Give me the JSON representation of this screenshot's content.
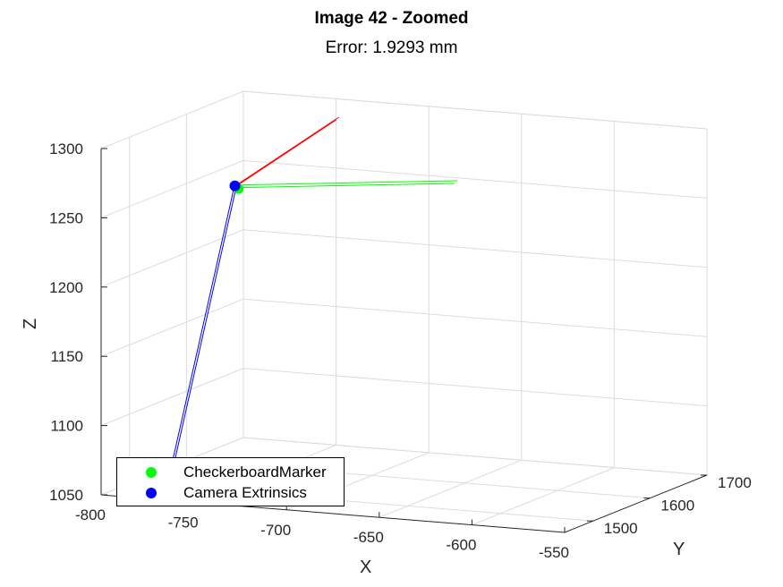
{
  "title": "Image 42 - Zoomed",
  "subtitle": "Error: 1.9293 mm",
  "chart_data": {
    "type": "scatter3d",
    "xlabel": "X",
    "ylabel": "Y",
    "zlabel": "Z",
    "xlim": [
      -800,
      -550
    ],
    "ylim": [
      1450,
      1700
    ],
    "zlim": [
      1050,
      1300
    ],
    "x_ticks": [
      "-800",
      "-750",
      "-700",
      "-650",
      "-600",
      "-550"
    ],
    "y_ticks": [
      "1500",
      "1600",
      "1700"
    ],
    "z_ticks": [
      "1050",
      "1100",
      "1150",
      "1200",
      "1250",
      "1300"
    ],
    "grid": true,
    "legend_position": "bottom-left",
    "series": [
      {
        "name": "CheckerboardMarker",
        "color": "#00ff00",
        "marker": "filled-circle",
        "points": [
          {
            "x": -755,
            "y": 1545,
            "z": 1260
          }
        ]
      },
      {
        "name": "Camera Extrinsics",
        "color": "#0000ff",
        "marker": "filled-circle",
        "points": [
          {
            "x": -757,
            "y": 1545,
            "z": 1262
          }
        ]
      }
    ],
    "axis_lines": [
      {
        "axis": "x",
        "color": "#ff0000"
      },
      {
        "axis": "y",
        "color": "#00ff00"
      },
      {
        "axis": "z",
        "color": "#0000ff"
      }
    ]
  }
}
